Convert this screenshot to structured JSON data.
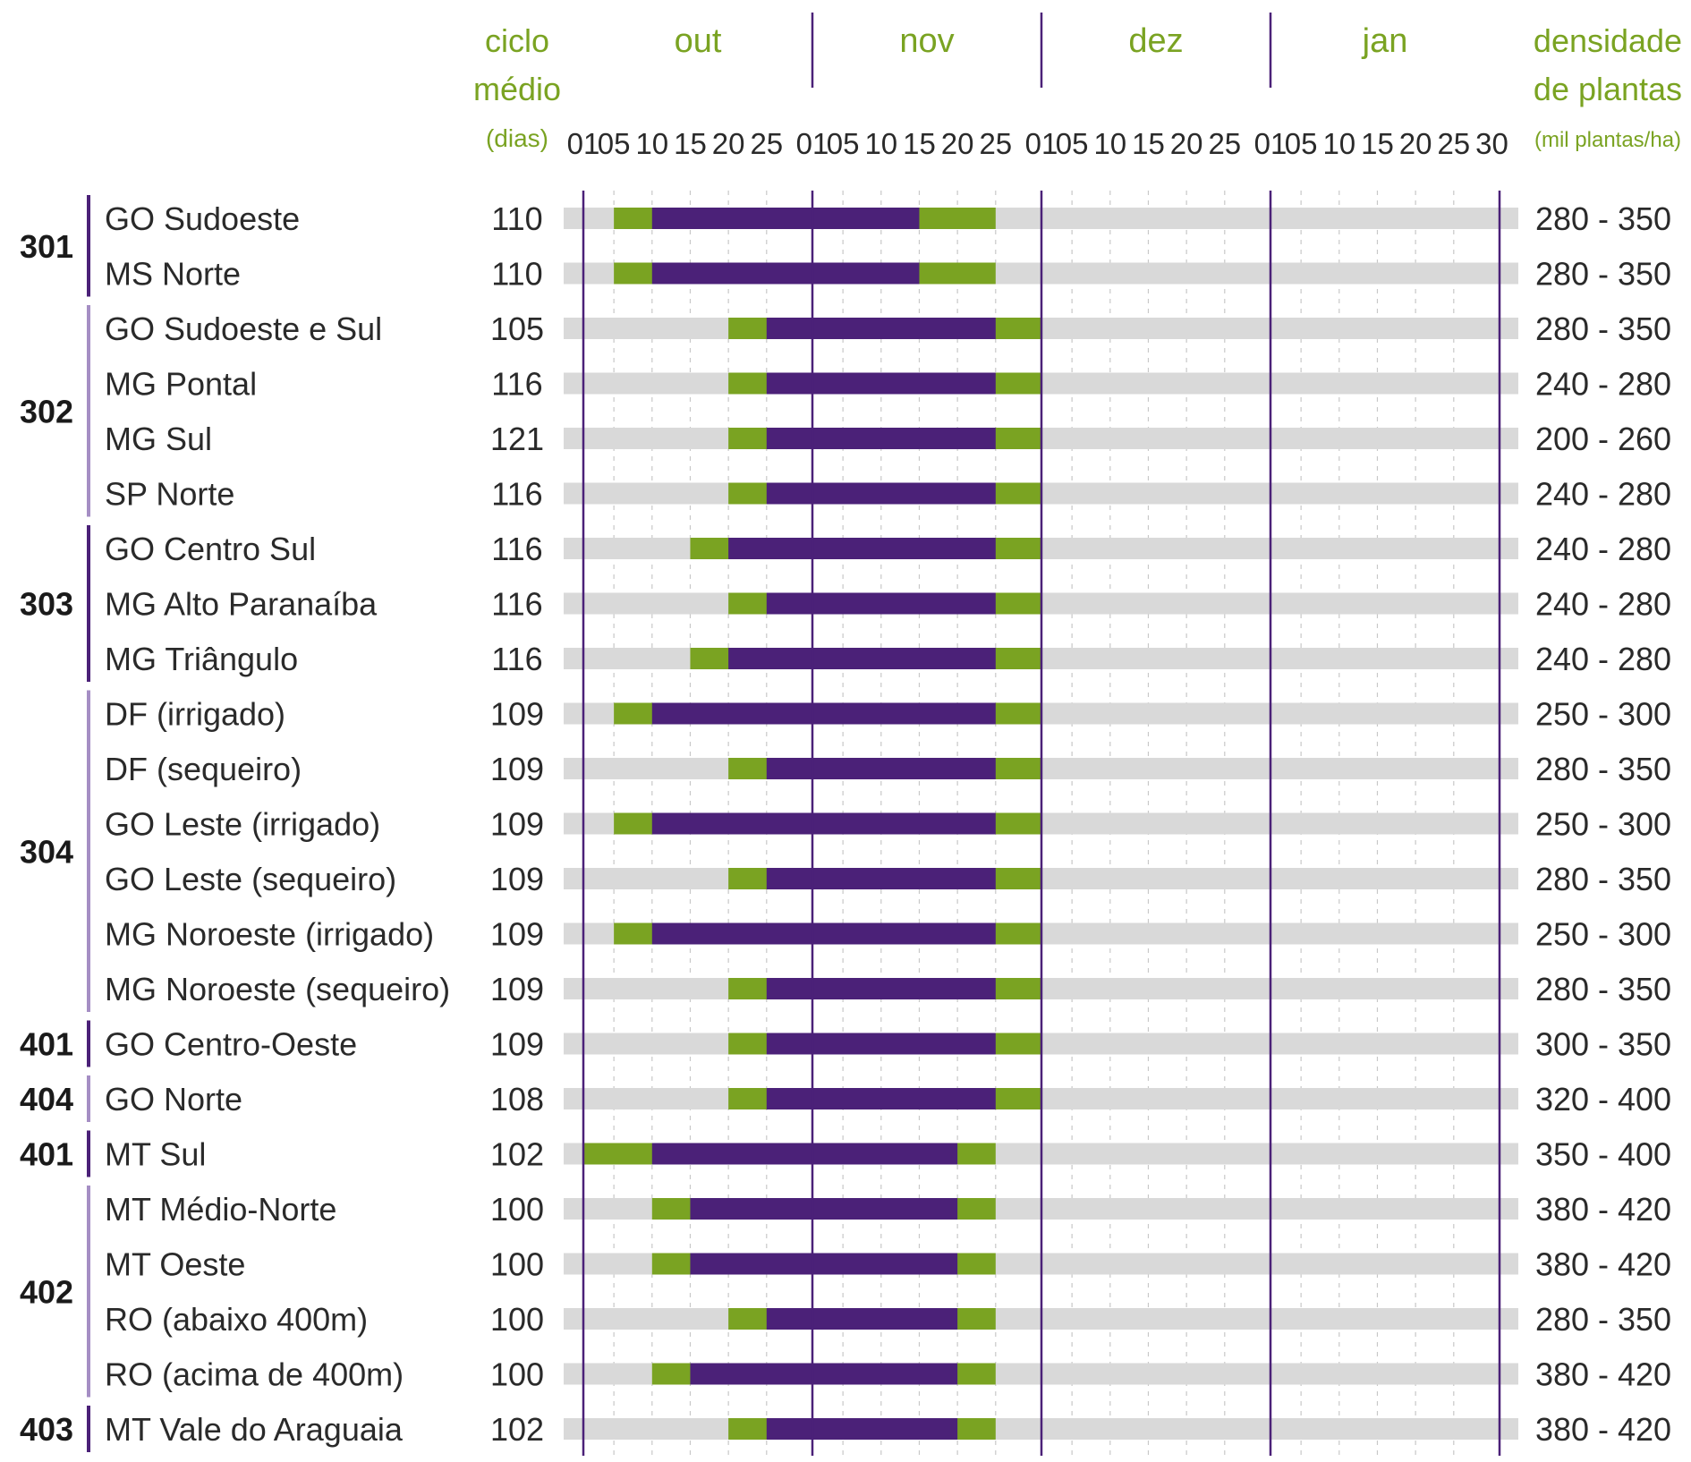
{
  "chart_data": {
    "type": "gantt",
    "headers": {
      "cycle": [
        "ciclo",
        "médio",
        "(dias)"
      ],
      "density": [
        "densidade",
        "de plantas",
        "(mil plantas/ha)"
      ]
    },
    "months": [
      "out",
      "nov",
      "dez",
      "jan"
    ],
    "day_ticks": [
      "01",
      "05",
      "10",
      "15",
      "20",
      "25",
      "01",
      "05",
      "10",
      "15",
      "20",
      "25",
      "01",
      "05",
      "10",
      "15",
      "20",
      "25",
      "01",
      "05",
      "10",
      "15",
      "20",
      "25",
      "30"
    ],
    "colors": {
      "background_bar": "#d9d9d9",
      "window": "#7aa322",
      "ideal": "#4b2178",
      "month_line": "#4b2178",
      "grid": "#c8c8c8",
      "group_line_dark": "#4b2178",
      "group_line_light": "#a58ec4"
    },
    "groups": [
      {
        "label": "301",
        "shade": "dark",
        "rows": [
          0,
          1
        ]
      },
      {
        "label": "302",
        "shade": "light",
        "rows": [
          2,
          3,
          4,
          5
        ]
      },
      {
        "label": "303",
        "shade": "dark",
        "rows": [
          6,
          7,
          8
        ]
      },
      {
        "label": "304",
        "shade": "light",
        "rows": [
          9,
          10,
          11,
          12,
          13,
          14
        ]
      },
      {
        "label": "401",
        "shade": "dark",
        "rows": [
          15
        ]
      },
      {
        "label": "404",
        "shade": "light",
        "rows": [
          16
        ]
      },
      {
        "label": "401",
        "shade": "dark",
        "rows": [
          17
        ]
      },
      {
        "label": "402",
        "shade": "light",
        "rows": [
          18,
          19,
          20,
          21
        ]
      },
      {
        "label": "403",
        "shade": "dark",
        "rows": [
          22
        ]
      }
    ],
    "rows": [
      {
        "region": "GO Sudoeste",
        "cycle": "110",
        "density": "280 - 350",
        "window_start": "out 05",
        "ideal_start": "out 10",
        "ideal_end": "nov 15",
        "window_end": "nov 25"
      },
      {
        "region": "MS Norte",
        "cycle": "110",
        "density": "280 - 350",
        "window_start": "out 05",
        "ideal_start": "out 10",
        "ideal_end": "nov 15",
        "window_end": "nov 25"
      },
      {
        "region": "GO Sudoeste e Sul",
        "cycle": "105",
        "density": "280 - 350",
        "window_start": "out 20",
        "ideal_start": "out 25",
        "ideal_end": "nov 25",
        "window_end": "dez 01"
      },
      {
        "region": "MG Pontal",
        "cycle": "116",
        "density": "240 - 280",
        "window_start": "out 20",
        "ideal_start": "out 25",
        "ideal_end": "nov 25",
        "window_end": "dez 01"
      },
      {
        "region": "MG Sul",
        "cycle": "121",
        "density": "200 - 260",
        "window_start": "out 20",
        "ideal_start": "out 25",
        "ideal_end": "nov 25",
        "window_end": "dez 01"
      },
      {
        "region": "SP Norte",
        "cycle": "116",
        "density": "240 - 280",
        "window_start": "out 20",
        "ideal_start": "out 25",
        "ideal_end": "nov 25",
        "window_end": "dez 01"
      },
      {
        "region": "GO Centro Sul",
        "cycle": "116",
        "density": "240 - 280",
        "window_start": "out 15",
        "ideal_start": "out 20",
        "ideal_end": "nov 25",
        "window_end": "dez 01"
      },
      {
        "region": "MG Alto Paranaíba",
        "cycle": "116",
        "density": "240 - 280",
        "window_start": "out 20",
        "ideal_start": "out 25",
        "ideal_end": "nov 25",
        "window_end": "dez 01"
      },
      {
        "region": "MG Triângulo",
        "cycle": "116",
        "density": "240 - 280",
        "window_start": "out 15",
        "ideal_start": "out 20",
        "ideal_end": "nov 25",
        "window_end": "dez 01"
      },
      {
        "region": "DF (irrigado)",
        "cycle": "109",
        "density": "250 - 300",
        "window_start": "out 05",
        "ideal_start": "out 10",
        "ideal_end": "nov 25",
        "window_end": "dez 01"
      },
      {
        "region": "DF (sequeiro)",
        "cycle": "109",
        "density": "280 - 350",
        "window_start": "out 20",
        "ideal_start": "out 25",
        "ideal_end": "nov 25",
        "window_end": "dez 01"
      },
      {
        "region": "GO Leste (irrigado)",
        "cycle": "109",
        "density": "250 - 300",
        "window_start": "out 05",
        "ideal_start": "out 10",
        "ideal_end": "nov 25",
        "window_end": "dez 01"
      },
      {
        "region": "GO Leste (sequeiro)",
        "cycle": "109",
        "density": "280 - 350",
        "window_start": "out 20",
        "ideal_start": "out 25",
        "ideal_end": "nov 25",
        "window_end": "dez 01"
      },
      {
        "region": "MG Noroeste (irrigado)",
        "cycle": "109",
        "density": "250 - 300",
        "window_start": "out 05",
        "ideal_start": "out 10",
        "ideal_end": "nov 25",
        "window_end": "dez 01"
      },
      {
        "region": "MG Noroeste (sequeiro)",
        "cycle": "109",
        "density": "280 - 350",
        "window_start": "out 20",
        "ideal_start": "out 25",
        "ideal_end": "nov 25",
        "window_end": "dez 01"
      },
      {
        "region": "GO Centro-Oeste",
        "cycle": "109",
        "density": "300 - 350",
        "window_start": "out 20",
        "ideal_start": "out 25",
        "ideal_end": "nov 25",
        "window_end": "dez 01"
      },
      {
        "region": "GO Norte",
        "cycle": "108",
        "density": "320 - 400",
        "window_start": "out 20",
        "ideal_start": "out 25",
        "ideal_end": "nov 25",
        "window_end": "dez 01"
      },
      {
        "region": "MT Sul",
        "cycle": "102",
        "density": "350 - 400",
        "window_start": "out 01",
        "ideal_start": "out 10",
        "ideal_end": "nov 20",
        "window_end": "nov 25"
      },
      {
        "region": "MT Médio-Norte",
        "cycle": "100",
        "density": "380 - 420",
        "window_start": "out 10",
        "ideal_start": "out 15",
        "ideal_end": "nov 20",
        "window_end": "nov 25"
      },
      {
        "region": "MT Oeste",
        "cycle": "100",
        "density": "380 - 420",
        "window_start": "out 10",
        "ideal_start": "out 15",
        "ideal_end": "nov 20",
        "window_end": "nov 25"
      },
      {
        "region": "RO (abaixo 400m)",
        "cycle": "100",
        "density": "280 - 350",
        "window_start": "out 20",
        "ideal_start": "out 25",
        "ideal_end": "nov 20",
        "window_end": "nov 25"
      },
      {
        "region": "RO (acima de 400m)",
        "cycle": "100",
        "density": "380 - 420",
        "window_start": "out 10",
        "ideal_start": "out 15",
        "ideal_end": "nov 20",
        "window_end": "nov 25"
      },
      {
        "region": "MT Vale do Araguaia",
        "cycle": "102",
        "density": "380 - 420",
        "window_start": "out 20",
        "ideal_start": "out 25",
        "ideal_end": "nov 20",
        "window_end": "nov 25"
      }
    ]
  }
}
